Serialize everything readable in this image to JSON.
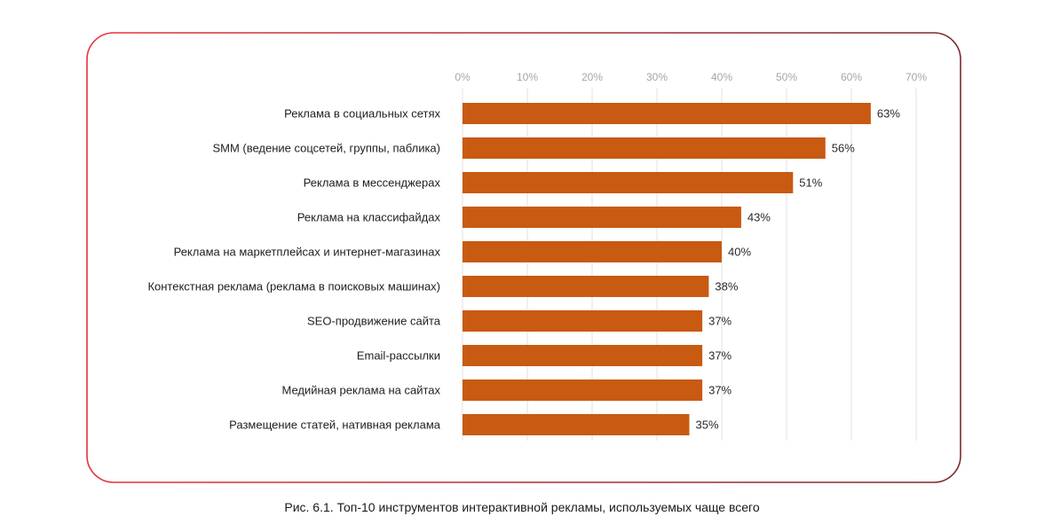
{
  "figure": {
    "caption": "Рис. 6.1. Топ-10 инструментов интерактивной рекламы, используемых чаще всего",
    "frame_gradient": [
      "#e8323c",
      "#7a2a2e"
    ]
  },
  "chart_data": {
    "type": "bar",
    "orientation": "horizontal",
    "title": "",
    "xlabel": "",
    "ylabel": "",
    "categories": [
      "Реклама в социальных сетях",
      "SMM (ведение соцсетей, группы, паблика)",
      "Реклама в мессенджерах",
      "Реклама на классифайдах",
      "Реклама на маркетплейсах и интернет-магазинах",
      "Контекстная реклама (реклама в поисковых машинах)",
      "SEO-продвижение сайта",
      "Email-рассылки",
      "Медийная реклама на сайтах",
      "Размещение статей, нативная реклама"
    ],
    "values": [
      63,
      56,
      51,
      43,
      40,
      38,
      37,
      37,
      37,
      35
    ],
    "value_labels": [
      "63%",
      "56%",
      "51%",
      "43%",
      "40%",
      "38%",
      "37%",
      "37%",
      "37%",
      "35%"
    ],
    "xlim": [
      0,
      70
    ],
    "x_ticks": [
      0,
      10,
      20,
      30,
      40,
      50,
      60,
      70
    ],
    "x_tick_labels": [
      "0%",
      "10%",
      "20%",
      "30%",
      "40%",
      "50%",
      "60%",
      "70%"
    ],
    "axis_position": "top",
    "grid": true,
    "legend": "none",
    "bar_color": "#c85a12",
    "grid_color": "#e6e6e6"
  }
}
